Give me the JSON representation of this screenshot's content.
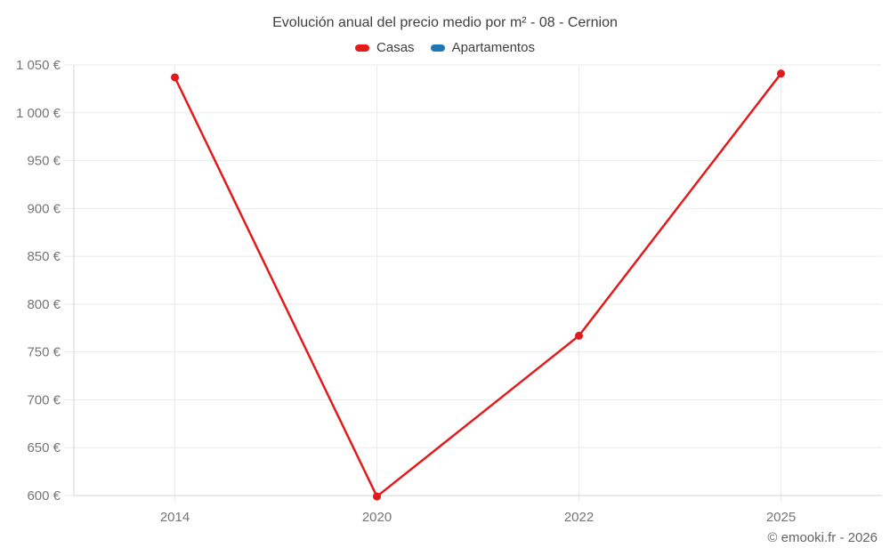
{
  "title": "Evolución anual del precio medio por m² - 08 - Cernion",
  "footer": "© emooki.fr - 2026",
  "legend": [
    {
      "label": "Casas",
      "color": "#e31a1c"
    },
    {
      "label": "Apartamentos",
      "color": "#1f78b4"
    }
  ],
  "colors": {
    "grid": "#ebebeb",
    "axis": "#d4d4d4",
    "tick": "#dcdcdc",
    "axis_text": "#757575",
    "title_text": "#404040"
  },
  "chart_data": {
    "type": "line",
    "title": "Evolución anual del precio medio por m² - 08 - Cernion",
    "categories": [
      "2014",
      "2020",
      "2022",
      "2025"
    ],
    "series": [
      {
        "name": "Casas",
        "color": "#e31a1c",
        "values": [
          1037,
          599,
          767,
          1041
        ]
      },
      {
        "name": "Apartamentos",
        "color": "#1f78b4",
        "values": []
      }
    ],
    "xlabel": "",
    "ylabel": "",
    "ylim": [
      600,
      1050
    ],
    "y_ticks": [
      600,
      650,
      700,
      750,
      800,
      850,
      900,
      950,
      1000,
      1050
    ],
    "y_tick_labels": [
      "600 €",
      "650 €",
      "700 €",
      "750 €",
      "800 €",
      "850 €",
      "900 €",
      "950 €",
      "1 000 €",
      "1 050 €"
    ],
    "grid": true,
    "legend_position": "top",
    "markers": true
  }
}
